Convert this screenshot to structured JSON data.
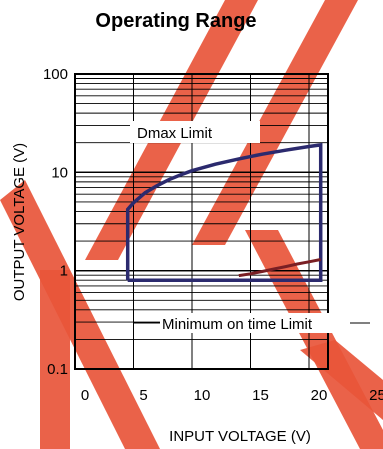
{
  "chart_data": {
    "type": "line",
    "title": "Operating Range",
    "xlabel": "INPUT VOLTAGE (V)",
    "ylabel": "OUTPUT VOLTAGE (V)",
    "xlim": [
      0,
      25
    ],
    "ylim": [
      0.1,
      100
    ],
    "yscale": "log",
    "x_tick_labels": [
      "0",
      "5",
      "10",
      "15",
      "20",
      "25"
    ],
    "y_tick_labels": [
      "0.1",
      "1",
      "10",
      "100"
    ],
    "grid": true,
    "annotations": [
      {
        "text": "Dmax Limit"
      },
      {
        "text": "Minimum on time Limit"
      }
    ],
    "series": [
      {
        "color": "#2b2a6e",
        "points": [
          [
            4.5,
            0.8
          ],
          [
            4.5,
            4.2
          ],
          [
            5,
            4.9
          ],
          [
            6,
            6.2
          ],
          [
            7,
            7.3
          ],
          [
            8,
            8.4
          ],
          [
            9,
            9.4
          ],
          [
            10,
            10.4
          ],
          [
            12,
            12.1
          ],
          [
            14,
            13.7
          ],
          [
            16,
            15.3
          ],
          [
            18,
            16.8
          ],
          [
            20,
            18.3
          ],
          [
            21,
            19.0
          ],
          [
            21,
            0.8
          ],
          [
            4.5,
            0.8
          ]
        ]
      },
      {
        "color": "#7a1f24",
        "points": [
          [
            14,
            0.89
          ],
          [
            15,
            0.93
          ],
          [
            16,
            0.98
          ],
          [
            17,
            1.04
          ],
          [
            18,
            1.1
          ],
          [
            19,
            1.17
          ],
          [
            20,
            1.23
          ],
          [
            21,
            1.3
          ]
        ]
      }
    ]
  },
  "watermark": {
    "colors": [
      "#e8553a"
    ]
  }
}
